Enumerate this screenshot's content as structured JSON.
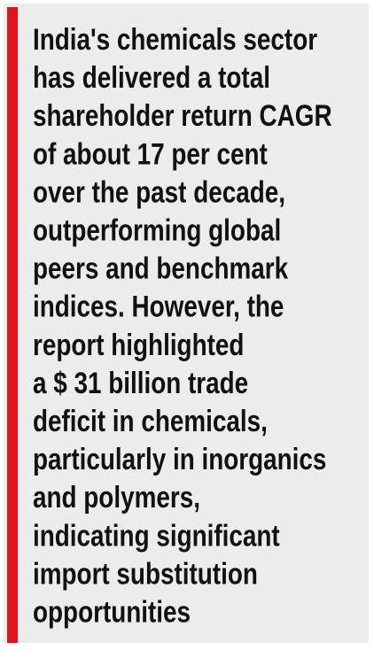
{
  "lines": [
    "India's chemicals sector",
    "has delivered a total",
    "shareholder return CAGR",
    "of about 17 per cent",
    "over the past decade,",
    "outperforming global",
    "peers and benchmark",
    "indices. However, the",
    "report highlighted",
    "a $ 31 billion trade",
    "deficit in chemicals,",
    "particularly in inorganics",
    "and polymers,",
    "indicating significant",
    "import substitution",
    "opportunities"
  ]
}
